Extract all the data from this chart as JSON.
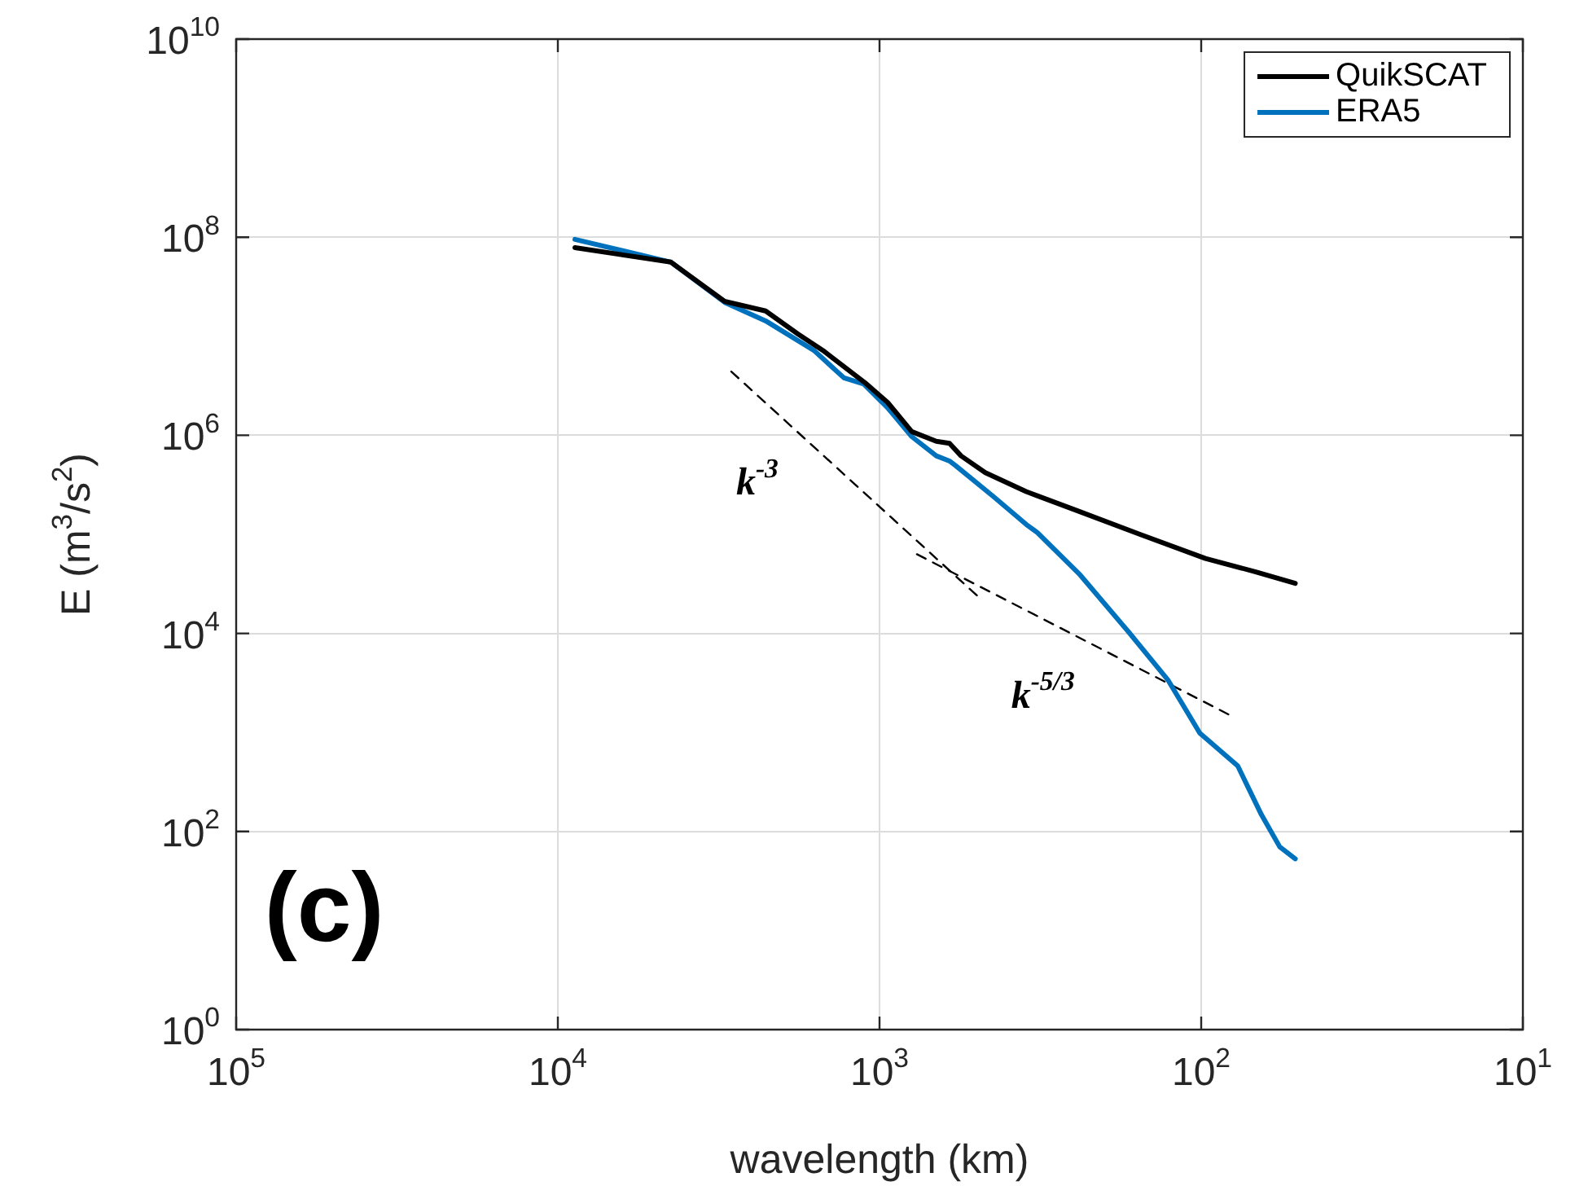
{
  "chart_data": {
    "type": "line",
    "xlabel": "wavelength (km)",
    "ylabel": "E (m$^{3}$/s$^{2}$)",
    "log": "xy",
    "grid": true,
    "legend": "top right",
    "marker": "none",
    "xlim": [
      100000,
      10
    ],
    "ylim": [
      1,
      10000000000
    ],
    "xticks": [
      {
        "value": 100000,
        "label": "10$^{5}$"
      },
      {
        "value": 10000,
        "label": "10$^{4}$"
      },
      {
        "value": 1000,
        "label": "10$^{3}$"
      },
      {
        "value": 100,
        "label": "10$^{2}$"
      },
      {
        "value": 10,
        "label": "10$^{1}$"
      }
    ],
    "yticks": [
      {
        "value": 1,
        "label": "10$^{0}$"
      },
      {
        "value": 100,
        "label": "10$^{2}$"
      },
      {
        "value": 10000,
        "label": "10$^{4}$"
      },
      {
        "value": 1000000,
        "label": "10$^{6}$"
      },
      {
        "value": 100000000,
        "label": "10$^{8}$"
      },
      {
        "value": 10000000000,
        "label": "10$^{10}$"
      }
    ],
    "series": [
      {
        "name": "QuikSCAT",
        "color": "#000000",
        "x": [
          8850,
          4450,
          3030,
          2260,
          1790,
          1500,
          1110,
          944,
          794,
          666,
          606,
          558,
          469,
          350,
          247,
          155,
          97,
          68,
          51
        ],
        "values": [
          78500000,
          56000000,
          22500000,
          18000000,
          10500000,
          7200000,
          3400000,
          2150000,
          1090000,
          870000,
          830000,
          620000,
          420000,
          270000,
          177000,
          100000,
          57000,
          42000,
          32000
        ]
      },
      {
        "name": "ERA5",
        "color": "#0072bd",
        "x": [
          8850,
          4450,
          3030,
          2260,
          1600,
          1290,
          1120,
          944,
          794,
          666,
          606,
          578,
          442,
          350,
          323,
          238,
          168,
          127,
          101,
          77,
          65,
          57,
          51
        ],
        "values": [
          95000000,
          56000000,
          22000000,
          14300000,
          7200000,
          3800000,
          3300000,
          1900000,
          970000,
          620000,
          550000,
          490000,
          240000,
          126000,
          104000,
          39000,
          10300,
          3400,
          985,
          460,
          148,
          70,
          53
        ]
      },
      {
        "type": "line",
        "line_style": "dashed",
        "color": "#000000",
        "x": [
          2890,
          497
        ],
        "values": [
          4400000,
          24000
        ]
      },
      {
        "type": "line",
        "line_style": "dashed",
        "color": "#000000",
        "x": [
          765,
          79.6
        ],
        "values": [
          63000,
          1440
        ]
      }
    ],
    "annotations": [
      "k$^{-3}$",
      "k$^{-5/3}$",
      "(c)"
    ]
  }
}
